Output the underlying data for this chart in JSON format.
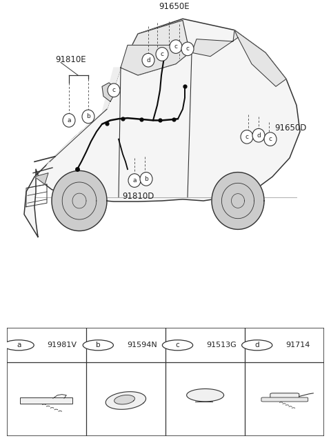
{
  "bg_color": "#ffffff",
  "fig_width": 4.8,
  "fig_height": 6.42,
  "dpi": 100,
  "line_color": "#333333",
  "text_color": "#222222",
  "parts": [
    {
      "marker": "a",
      "code": "91981V"
    },
    {
      "marker": "b",
      "code": "91594N"
    },
    {
      "marker": "c",
      "code": "91513G"
    },
    {
      "marker": "d",
      "code": "91714"
    }
  ]
}
